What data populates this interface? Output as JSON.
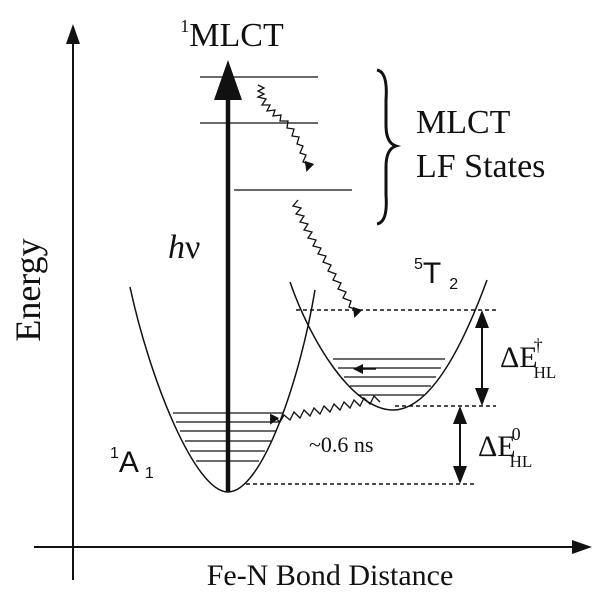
{
  "axes": {
    "x_label": "Fe-N Bond Distance",
    "y_label": "Energy"
  },
  "states": {
    "top": {
      "prefix": "1",
      "name": "MLCT"
    },
    "bracket_line1": "MLCT",
    "bracket_line2": "LF States",
    "ground": {
      "prefix": "1",
      "name": "A",
      "sub": "1"
    },
    "high_spin": {
      "prefix": "5",
      "name": "T",
      "sub": "2"
    }
  },
  "labels": {
    "photon_h": "h",
    "photon_nu": "ν",
    "lifetime": "~0.6 ns"
  },
  "energy_gaps": {
    "upper": {
      "delta": "ΔE",
      "sup": "†",
      "sub": "HL"
    },
    "lower": {
      "delta": "ΔE",
      "sup": "0",
      "sub": "HL"
    }
  }
}
